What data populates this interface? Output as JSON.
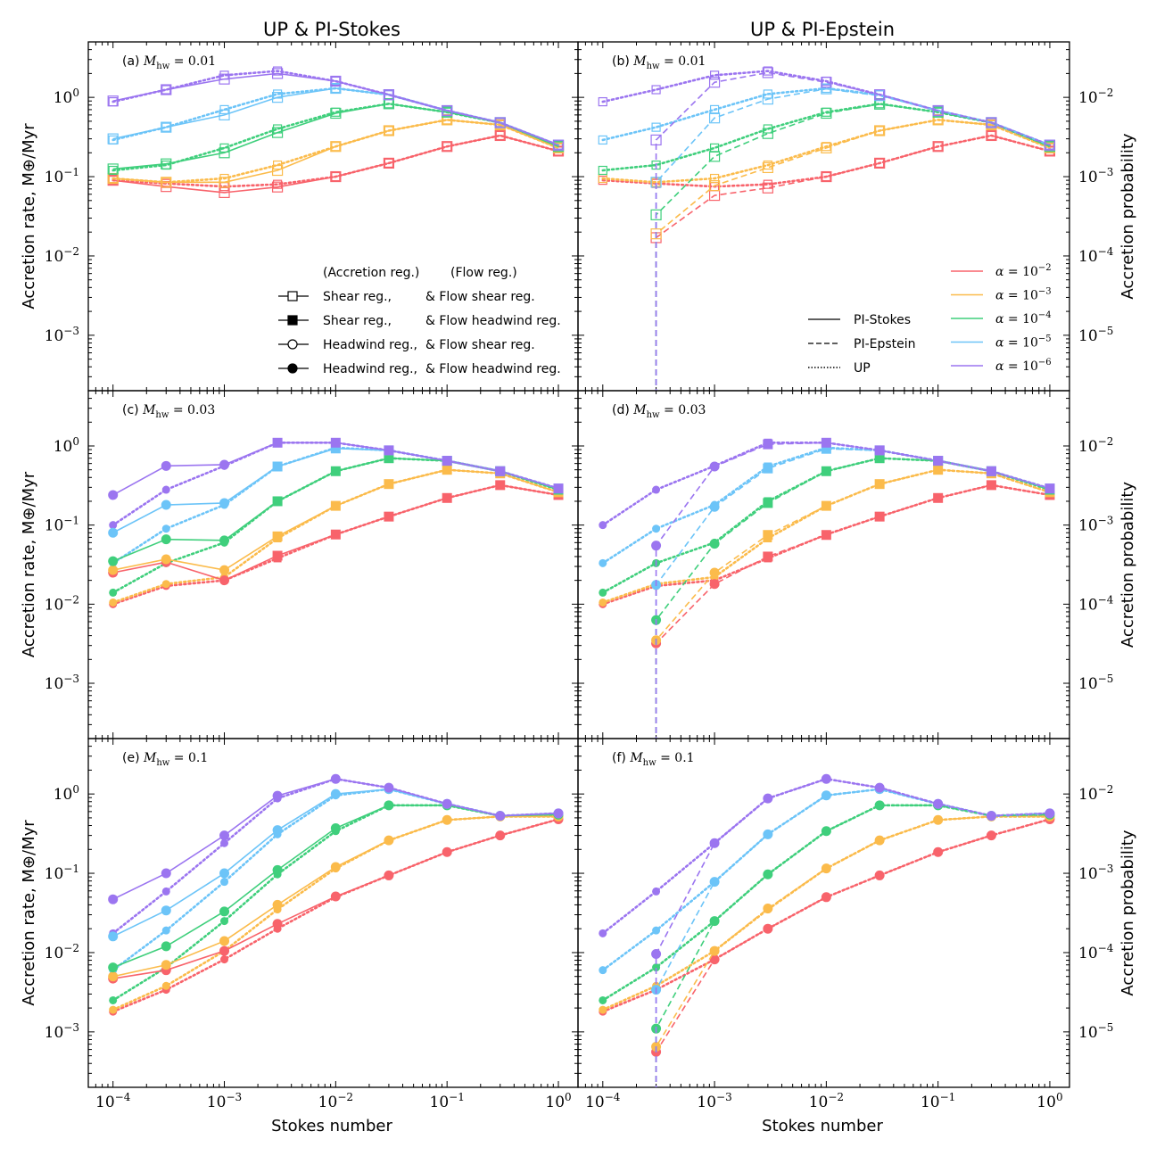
{
  "chart_data": {
    "type": "line",
    "column_titles": [
      "UP & PI-Stokes",
      "UP & PI-Epstein"
    ],
    "xlabel": "Stokes number",
    "ylabel_left": "Accretion rate, M⊕/Myr",
    "ylabel_right": "Accretion probability",
    "x_scale": "log",
    "y_scale": "log",
    "xlim": [
      6e-05,
      1.5
    ],
    "ylim_left": [
      0.0002,
      5
    ],
    "ylim_right": [
      2e-06,
      0.05
    ],
    "x_tick_values": [
      0.0001,
      0.001,
      0.01,
      0.1,
      1
    ],
    "x_tick_labels": [
      {
        "base": "10",
        "exp": "−4"
      },
      {
        "base": "10",
        "exp": "−3"
      },
      {
        "base": "10",
        "exp": "−2"
      },
      {
        "base": "10",
        "exp": "−1"
      },
      {
        "base": "10",
        "exp": "0"
      }
    ],
    "y_left_tick_values": [
      0.001,
      0.01,
      0.1,
      1
    ],
    "y_left_tick_labels": [
      {
        "base": "10",
        "exp": "−3"
      },
      {
        "base": "10",
        "exp": "−2"
      },
      {
        "base": "10",
        "exp": "−1"
      },
      {
        "base": "10",
        "exp": "0"
      }
    ],
    "y_right_tick_values": [
      1e-05,
      0.0001,
      0.001,
      0.01
    ],
    "y_right_tick_labels": [
      {
        "base": "10",
        "exp": "−5"
      },
      {
        "base": "10",
        "exp": "−4"
      },
      {
        "base": "10",
        "exp": "−3"
      },
      {
        "base": "10",
        "exp": "−2"
      }
    ],
    "stokes": [
      0.0001,
      0.0003,
      0.001,
      0.003,
      0.01,
      0.03,
      0.1,
      0.3,
      1
    ],
    "alpha_colors": [
      "#f8636b",
      "#fbbb4b",
      "#3fcf7c",
      "#6cc4f8",
      "#9b75f0"
    ],
    "legend_alpha": [
      {
        "label": "α = 10",
        "exp": "−2"
      },
      {
        "label": "α = 10",
        "exp": "−3"
      },
      {
        "label": "α = 10",
        "exp": "−4"
      },
      {
        "label": "α = 10",
        "exp": "−5"
      },
      {
        "label": "α = 10",
        "exp": "−6"
      }
    ],
    "legend_linestyle": [
      {
        "label": "PI-Stokes",
        "style": "solid"
      },
      {
        "label": "PI-Epstein",
        "style": "dashed"
      },
      {
        "label": "UP",
        "style": "dotted"
      }
    ],
    "legend_markers": {
      "header_accretion": "(Accretion reg.)",
      "header_flow": "(Flow reg.)",
      "items": [
        {
          "marker": "square-open",
          "accretion": "Shear reg.,",
          "flow": "& Flow shear reg."
        },
        {
          "marker": "square-filled",
          "accretion": "Shear reg.,",
          "flow": "& Flow headwind reg."
        },
        {
          "marker": "circle-open",
          "accretion": "Headwind reg.,",
          "flow": "& Flow shear reg."
        },
        {
          "marker": "circle-filled",
          "accretion": "Headwind reg.,",
          "flow": "& Flow headwind reg."
        }
      ]
    },
    "panels": [
      {
        "label": "(a)",
        "mach_label": "M",
        "mach_sub": "hw",
        "mach_value": "= 0.01",
        "marker": "square-open",
        "pi": "stokes",
        "pi_series": [
          [
            0.09,
            0.075,
            0.063,
            0.074,
            0.1,
            0.148,
            0.24,
            0.33,
            0.21
          ],
          [
            0.095,
            0.085,
            0.085,
            0.12,
            0.24,
            0.38,
            0.52,
            0.45,
            0.23
          ],
          [
            0.125,
            0.145,
            0.2,
            0.36,
            0.63,
            0.83,
            0.65,
            0.48,
            0.24
          ],
          [
            0.3,
            0.42,
            0.6,
            1.0,
            1.3,
            1.08,
            0.68,
            0.48,
            0.25
          ],
          [
            0.9,
            1.25,
            1.7,
            2.0,
            1.6,
            1.08,
            0.68,
            0.48,
            0.25
          ]
        ],
        "up_series": [
          [
            0.09,
            0.082,
            0.075,
            0.08,
            0.1,
            0.148,
            0.24,
            0.33,
            0.21
          ],
          [
            0.095,
            0.085,
            0.095,
            0.14,
            0.24,
            0.38,
            0.52,
            0.45,
            0.23
          ],
          [
            0.12,
            0.14,
            0.23,
            0.4,
            0.65,
            0.83,
            0.65,
            0.48,
            0.24
          ],
          [
            0.29,
            0.42,
            0.7,
            1.1,
            1.3,
            1.08,
            0.68,
            0.48,
            0.25
          ],
          [
            0.88,
            1.25,
            1.9,
            2.15,
            1.6,
            1.08,
            0.68,
            0.48,
            0.25
          ]
        ]
      },
      {
        "label": "(b)",
        "mach_label": "M",
        "mach_sub": "hw",
        "mach_value": "= 0.01",
        "marker": "square-open",
        "pi": "epstein",
        "pi_series": [
          [
            null,
            0.017,
            0.058,
            0.072,
            0.1,
            0.148,
            0.24,
            0.33,
            0.21
          ],
          [
            null,
            0.019,
            0.077,
            0.13,
            0.23,
            0.38,
            0.52,
            0.45,
            0.23
          ],
          [
            null,
            0.033,
            0.18,
            0.35,
            0.63,
            0.82,
            0.65,
            0.48,
            0.24
          ],
          [
            null,
            0.085,
            0.55,
            0.95,
            1.28,
            1.05,
            0.68,
            0.48,
            0.25
          ],
          [
            null,
            0.29,
            1.55,
            2.05,
            1.55,
            1.08,
            0.68,
            0.48,
            0.25
          ]
        ],
        "up_series": [
          [
            0.09,
            0.082,
            0.075,
            0.08,
            0.1,
            0.148,
            0.24,
            0.33,
            0.21
          ],
          [
            0.095,
            0.085,
            0.095,
            0.14,
            0.24,
            0.38,
            0.52,
            0.45,
            0.23
          ],
          [
            0.12,
            0.14,
            0.23,
            0.4,
            0.65,
            0.83,
            0.65,
            0.48,
            0.24
          ],
          [
            0.29,
            0.42,
            0.7,
            1.1,
            1.3,
            1.08,
            0.68,
            0.48,
            0.25
          ],
          [
            0.88,
            1.25,
            1.9,
            2.15,
            1.6,
            1.08,
            0.68,
            0.48,
            0.25
          ]
        ]
      },
      {
        "label": "(c)",
        "mach_label": "M",
        "mach_sub": "hw",
        "mach_value": "= 0.03",
        "marker": "mixed",
        "pi": "stokes",
        "pi_series": [
          [
            0.025,
            0.034,
            0.02,
            0.041,
            0.076,
            0.128,
            0.22,
            0.32,
            0.24
          ],
          [
            0.027,
            0.037,
            0.027,
            0.072,
            0.175,
            0.33,
            0.5,
            0.45,
            0.26
          ],
          [
            0.035,
            0.066,
            0.064,
            0.2,
            0.48,
            0.7,
            0.65,
            0.48,
            0.28
          ],
          [
            0.08,
            0.18,
            0.19,
            0.55,
            0.93,
            0.88,
            0.65,
            0.48,
            0.29
          ],
          [
            0.24,
            0.56,
            0.58,
            1.1,
            1.1,
            0.88,
            0.65,
            0.48,
            0.29
          ]
        ],
        "up_series": [
          [
            0.01,
            0.017,
            0.02,
            0.038,
            0.076,
            0.128,
            0.22,
            0.32,
            0.24
          ],
          [
            0.0105,
            0.018,
            0.022,
            0.068,
            0.175,
            0.33,
            0.5,
            0.45,
            0.26
          ],
          [
            0.014,
            0.033,
            0.06,
            0.2,
            0.48,
            0.7,
            0.65,
            0.48,
            0.28
          ],
          [
            0.033,
            0.09,
            0.18,
            0.55,
            0.95,
            0.88,
            0.65,
            0.48,
            0.29
          ],
          [
            0.1,
            0.28,
            0.56,
            1.1,
            1.1,
            0.88,
            0.65,
            0.48,
            0.29
          ]
        ]
      },
      {
        "label": "(d)",
        "mach_label": "M",
        "mach_sub": "hw",
        "mach_value": "= 0.03",
        "marker": "mixed",
        "pi": "epstein",
        "pi_series": [
          [
            null,
            0.0032,
            0.018,
            0.04,
            0.075,
            0.128,
            0.22,
            0.32,
            0.24
          ],
          [
            null,
            0.0035,
            0.025,
            0.075,
            0.175,
            0.33,
            0.5,
            0.45,
            0.26
          ],
          [
            null,
            0.0063,
            0.058,
            0.19,
            0.48,
            0.7,
            0.65,
            0.48,
            0.28
          ],
          [
            null,
            0.0175,
            0.17,
            0.52,
            0.92,
            0.88,
            0.65,
            0.48,
            0.29
          ],
          [
            null,
            0.055,
            0.55,
            1.05,
            1.1,
            0.88,
            0.65,
            0.48,
            0.29
          ]
        ],
        "up_series": [
          [
            0.01,
            0.017,
            0.02,
            0.038,
            0.076,
            0.128,
            0.22,
            0.32,
            0.24
          ],
          [
            0.0105,
            0.018,
            0.022,
            0.068,
            0.175,
            0.33,
            0.5,
            0.45,
            0.26
          ],
          [
            0.014,
            0.033,
            0.06,
            0.2,
            0.48,
            0.7,
            0.65,
            0.48,
            0.28
          ],
          [
            0.033,
            0.09,
            0.18,
            0.55,
            0.95,
            0.88,
            0.65,
            0.48,
            0.29
          ],
          [
            0.1,
            0.28,
            0.56,
            1.1,
            1.1,
            0.88,
            0.65,
            0.48,
            0.29
          ]
        ]
      },
      {
        "label": "(e)",
        "mach_label": "M",
        "mach_sub": "hw",
        "mach_value": "= 0.1",
        "marker": "mixed",
        "pi": "stokes",
        "pi_series": [
          [
            0.0047,
            0.006,
            0.0105,
            0.023,
            0.051,
            0.094,
            0.185,
            0.3,
            0.48
          ],
          [
            0.005,
            0.007,
            0.014,
            0.04,
            0.12,
            0.26,
            0.47,
            0.52,
            0.52
          ],
          [
            0.0065,
            0.012,
            0.033,
            0.11,
            0.37,
            0.72,
            0.72,
            0.53,
            0.55
          ],
          [
            0.016,
            0.034,
            0.1,
            0.35,
            1.0,
            1.15,
            0.75,
            0.53,
            0.57
          ],
          [
            0.047,
            0.1,
            0.3,
            0.95,
            1.55,
            1.2,
            0.75,
            0.53,
            0.57
          ]
        ],
        "up_series": [
          [
            0.0018,
            0.0034,
            0.0082,
            0.02,
            0.05,
            0.094,
            0.185,
            0.3,
            0.48
          ],
          [
            0.0019,
            0.0038,
            0.0105,
            0.035,
            0.115,
            0.26,
            0.47,
            0.52,
            0.52
          ],
          [
            0.0025,
            0.0065,
            0.025,
            0.097,
            0.34,
            0.72,
            0.72,
            0.53,
            0.55
          ],
          [
            0.006,
            0.019,
            0.078,
            0.31,
            0.96,
            1.15,
            0.75,
            0.53,
            0.57
          ],
          [
            0.0175,
            0.059,
            0.24,
            0.88,
            1.55,
            1.2,
            0.75,
            0.53,
            0.57
          ]
        ]
      },
      {
        "label": "(f)",
        "mach_label": "M",
        "mach_sub": "hw",
        "mach_value": "= 0.1",
        "marker": "mixed",
        "pi": "epstein",
        "pi_series": [
          [
            null,
            0.00056,
            0.0082,
            0.02,
            0.05,
            0.094,
            0.185,
            0.3,
            0.48
          ],
          [
            null,
            0.00065,
            0.0105,
            0.036,
            0.115,
            0.26,
            0.47,
            0.52,
            0.52
          ],
          [
            null,
            0.0011,
            0.025,
            0.097,
            0.34,
            0.72,
            0.72,
            0.53,
            0.55
          ],
          [
            null,
            0.0034,
            0.078,
            0.31,
            0.96,
            1.15,
            0.75,
            0.53,
            0.57
          ],
          [
            null,
            0.0096,
            0.24,
            0.88,
            1.55,
            1.2,
            0.75,
            0.53,
            0.57
          ]
        ],
        "up_series": [
          [
            0.0018,
            0.0034,
            0.0082,
            0.02,
            0.05,
            0.094,
            0.185,
            0.3,
            0.48
          ],
          [
            0.0019,
            0.0038,
            0.0105,
            0.035,
            0.115,
            0.26,
            0.47,
            0.52,
            0.52
          ],
          [
            0.0025,
            0.0065,
            0.025,
            0.097,
            0.34,
            0.72,
            0.72,
            0.53,
            0.55
          ],
          [
            0.006,
            0.019,
            0.078,
            0.31,
            0.96,
            1.15,
            0.75,
            0.53,
            0.57
          ],
          [
            0.0175,
            0.059,
            0.24,
            0.88,
            1.55,
            1.2,
            0.75,
            0.53,
            0.57
          ]
        ]
      }
    ]
  }
}
